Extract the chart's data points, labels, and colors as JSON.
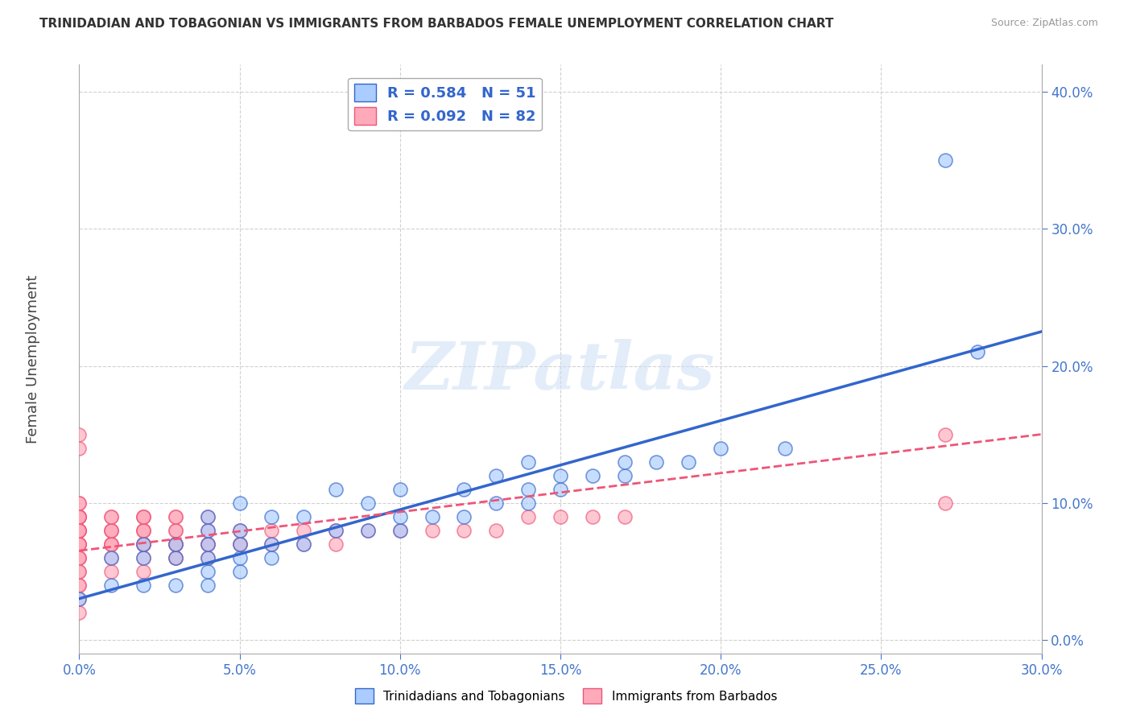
{
  "title": "TRINIDADIAN AND TOBAGONIAN VS IMMIGRANTS FROM BARBADOS FEMALE UNEMPLOYMENT CORRELATION CHART",
  "source": "Source: ZipAtlas.com",
  "xmin": 0.0,
  "xmax": 0.3,
  "ymin": -0.01,
  "ymax": 0.42,
  "ylabel": "Female Unemployment",
  "legend_labels": [
    "Trinidadians and Tobagonians",
    "Immigrants from Barbados"
  ],
  "R1": 0.584,
  "N1": 51,
  "R2": 0.092,
  "N2": 82,
  "series1_color": "#aaccff",
  "series2_color": "#ffaabb",
  "line1_color": "#3366cc",
  "line2_color": "#ee5577",
  "watermark_text": "ZIPatlas",
  "background_color": "#ffffff",
  "series1_x": [
    0.0,
    0.01,
    0.01,
    0.02,
    0.02,
    0.02,
    0.03,
    0.03,
    0.03,
    0.04,
    0.04,
    0.04,
    0.04,
    0.04,
    0.04,
    0.05,
    0.05,
    0.05,
    0.05,
    0.05,
    0.06,
    0.06,
    0.06,
    0.07,
    0.07,
    0.08,
    0.08,
    0.09,
    0.09,
    0.1,
    0.1,
    0.1,
    0.11,
    0.12,
    0.12,
    0.13,
    0.13,
    0.14,
    0.14,
    0.14,
    0.15,
    0.15,
    0.16,
    0.17,
    0.17,
    0.18,
    0.19,
    0.2,
    0.22,
    0.27,
    0.28
  ],
  "series1_y": [
    0.03,
    0.04,
    0.06,
    0.04,
    0.06,
    0.07,
    0.04,
    0.06,
    0.07,
    0.04,
    0.05,
    0.06,
    0.07,
    0.08,
    0.09,
    0.05,
    0.06,
    0.07,
    0.08,
    0.1,
    0.06,
    0.07,
    0.09,
    0.07,
    0.09,
    0.08,
    0.11,
    0.08,
    0.1,
    0.08,
    0.09,
    0.11,
    0.09,
    0.09,
    0.11,
    0.1,
    0.12,
    0.1,
    0.11,
    0.13,
    0.11,
    0.12,
    0.12,
    0.12,
    0.13,
    0.13,
    0.13,
    0.14,
    0.14,
    0.35,
    0.21
  ],
  "series2_x": [
    0.0,
    0.0,
    0.0,
    0.0,
    0.0,
    0.0,
    0.0,
    0.0,
    0.0,
    0.0,
    0.0,
    0.0,
    0.0,
    0.0,
    0.0,
    0.0,
    0.0,
    0.0,
    0.0,
    0.0,
    0.0,
    0.0,
    0.0,
    0.0,
    0.0,
    0.0,
    0.0,
    0.01,
    0.01,
    0.01,
    0.01,
    0.01,
    0.01,
    0.01,
    0.01,
    0.01,
    0.01,
    0.02,
    0.02,
    0.02,
    0.02,
    0.02,
    0.02,
    0.02,
    0.02,
    0.02,
    0.02,
    0.02,
    0.03,
    0.03,
    0.03,
    0.03,
    0.03,
    0.03,
    0.03,
    0.03,
    0.03,
    0.04,
    0.04,
    0.04,
    0.04,
    0.04,
    0.05,
    0.05,
    0.05,
    0.06,
    0.06,
    0.07,
    0.07,
    0.08,
    0.08,
    0.09,
    0.1,
    0.11,
    0.12,
    0.13,
    0.14,
    0.15,
    0.16,
    0.17,
    0.27,
    0.27
  ],
  "series2_y": [
    0.02,
    0.03,
    0.04,
    0.05,
    0.06,
    0.06,
    0.07,
    0.07,
    0.07,
    0.07,
    0.08,
    0.08,
    0.08,
    0.08,
    0.08,
    0.09,
    0.09,
    0.09,
    0.09,
    0.09,
    0.1,
    0.1,
    0.15,
    0.04,
    0.05,
    0.06,
    0.14,
    0.05,
    0.06,
    0.07,
    0.07,
    0.07,
    0.08,
    0.08,
    0.08,
    0.09,
    0.09,
    0.05,
    0.06,
    0.07,
    0.07,
    0.07,
    0.08,
    0.08,
    0.08,
    0.09,
    0.09,
    0.09,
    0.06,
    0.06,
    0.07,
    0.07,
    0.07,
    0.08,
    0.08,
    0.09,
    0.09,
    0.06,
    0.07,
    0.07,
    0.08,
    0.09,
    0.07,
    0.07,
    0.08,
    0.07,
    0.08,
    0.07,
    0.08,
    0.07,
    0.08,
    0.08,
    0.08,
    0.08,
    0.08,
    0.08,
    0.09,
    0.09,
    0.09,
    0.09,
    0.1,
    0.15
  ],
  "line1_x0": 0.0,
  "line1_y0": 0.03,
  "line1_x1": 0.3,
  "line1_y1": 0.225,
  "line2_x0": 0.0,
  "line2_y0": 0.065,
  "line2_x1": 0.3,
  "line2_y1": 0.15
}
